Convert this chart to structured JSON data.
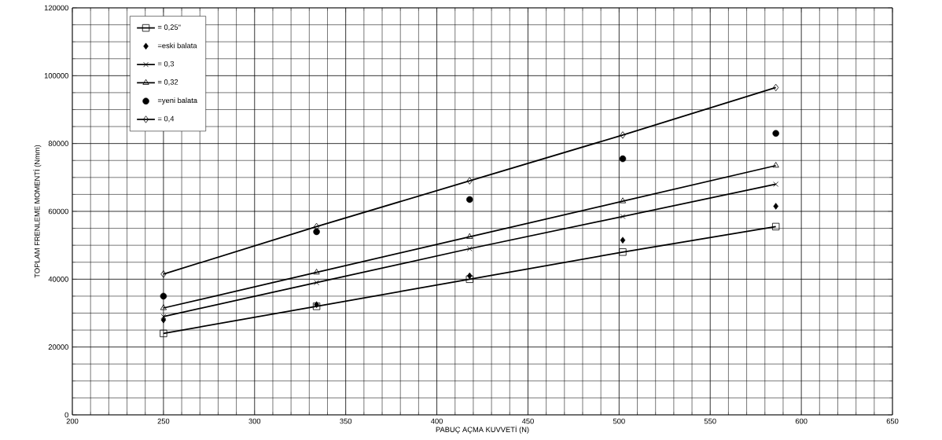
{
  "chart_data": {
    "type": "line",
    "xlabel": "PABUÇ AÇMA KUVVETİ (N)",
    "ylabel": "TOPLAM FRENLEME MOMENTİ (Nmm)",
    "x": [
      250,
      334,
      418,
      502,
      586
    ],
    "series": [
      {
        "name": "= 0,25\"",
        "marker": "square",
        "color": "#000000",
        "values": [
          24000,
          32000,
          40000,
          48000,
          55500
        ]
      },
      {
        "name": "=eski balata",
        "type": "scatter",
        "marker": "diamond",
        "color": "#000000",
        "values": [
          28000,
          32500,
          41000,
          51500,
          61500
        ]
      },
      {
        "name": "= 0,3",
        "marker": "cross",
        "color": "#000000",
        "values": [
          29000,
          39000,
          49000,
          58500,
          68000
        ]
      },
      {
        "name": "= 0,32",
        "marker": "triangle",
        "color": "#000000",
        "values": [
          31500,
          42000,
          52500,
          63000,
          73500
        ]
      },
      {
        "name": "=yeni balata",
        "type": "scatter",
        "marker": "circle",
        "color": "#000000",
        "values": [
          35000,
          54000,
          63500,
          75500,
          83000
        ]
      },
      {
        "name": "= 0,4",
        "marker": "diamond",
        "color": "#000000",
        "values": [
          41500,
          55500,
          69000,
          82500,
          96500
        ]
      }
    ],
    "xlim": [
      200,
      650
    ],
    "xticks": [
      200,
      250,
      300,
      350,
      400,
      450,
      500,
      550,
      600,
      650
    ],
    "ylim": [
      0,
      120000
    ],
    "yticks": [
      0,
      20000,
      40000,
      60000,
      80000,
      100000,
      120000
    ],
    "grid": true,
    "legend": "top left"
  }
}
